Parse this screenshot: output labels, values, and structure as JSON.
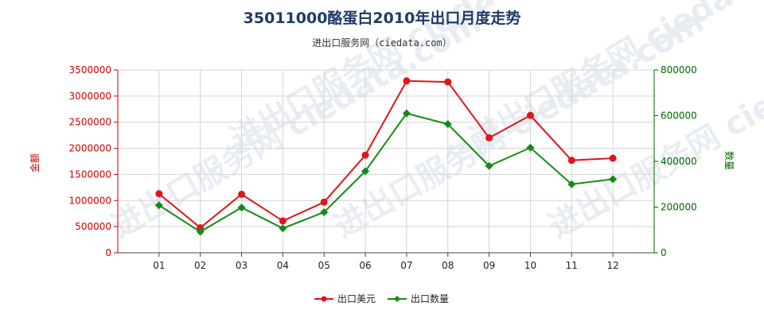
{
  "chart_data": {
    "type": "line",
    "title": "35011000酪蛋白2010年出口月度走势",
    "subtitle": "进出口服务网（ciedata.com）",
    "watermark": "进出口服务网 ciedata.com",
    "categories": [
      "01",
      "02",
      "03",
      "04",
      "05",
      "06",
      "07",
      "08",
      "09",
      "10",
      "11",
      "12"
    ],
    "left_axis": {
      "label": "金额",
      "ylim": [
        0,
        3500000
      ],
      "ticks": [
        "0",
        "500000",
        "1000000",
        "1500000",
        "2000000",
        "2500000",
        "3000000",
        "3500000"
      ]
    },
    "right_axis": {
      "label": "数量",
      "ylim": [
        0,
        800000
      ],
      "ticks": [
        "0",
        "200000",
        "400000",
        "600000",
        "800000"
      ]
    },
    "series": [
      {
        "name": "出口美元",
        "axis": "left",
        "color": "#e0161b",
        "marker": "circle",
        "values": [
          1130000,
          480000,
          1120000,
          610000,
          970000,
          1870000,
          3290000,
          3270000,
          2200000,
          2630000,
          1770000,
          1810000
        ]
      },
      {
        "name": "出口数量",
        "axis": "right",
        "color": "#168a16",
        "marker": "diamond",
        "values": [
          208000,
          92000,
          198000,
          107000,
          178000,
          357000,
          610000,
          563000,
          380000,
          460000,
          300000,
          322000
        ]
      }
    ],
    "grid": true,
    "legend": "bottom-center"
  }
}
